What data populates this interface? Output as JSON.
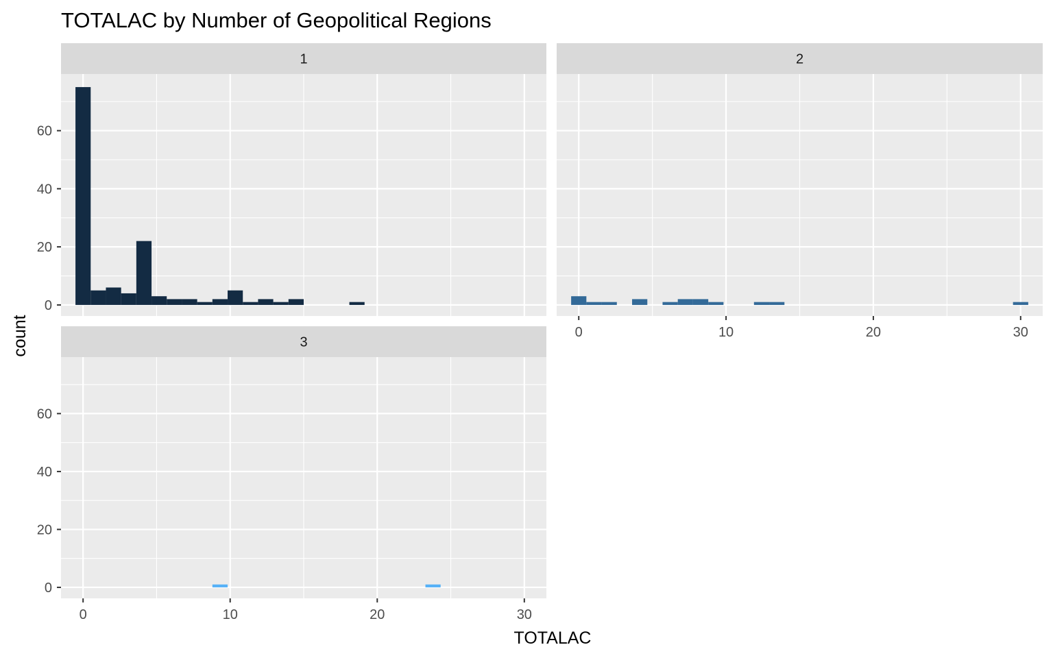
{
  "chart_data": {
    "type": "bar",
    "title": "TOTALAC by Number of Geopolitical Regions",
    "xlabel": "TOTALAC",
    "ylabel": "count",
    "xlim": [
      -1.5,
      31.5
    ],
    "ylim": [
      -3.8,
      79.5
    ],
    "x_ticks": [
      0,
      10,
      20,
      30
    ],
    "y_ticks": [
      0,
      20,
      40,
      60
    ],
    "grid": true,
    "bin_width": 1.0345,
    "panels": [
      {
        "name": "1",
        "color": "#132b43",
        "bins": [
          {
            "x": 0.0,
            "count": 75
          },
          {
            "x": 1.034,
            "count": 5
          },
          {
            "x": 2.069,
            "count": 6
          },
          {
            "x": 3.103,
            "count": 4
          },
          {
            "x": 4.138,
            "count": 22
          },
          {
            "x": 5.172,
            "count": 3
          },
          {
            "x": 6.207,
            "count": 2
          },
          {
            "x": 7.241,
            "count": 2
          },
          {
            "x": 8.276,
            "count": 1
          },
          {
            "x": 9.31,
            "count": 2
          },
          {
            "x": 10.345,
            "count": 5
          },
          {
            "x": 11.379,
            "count": 1
          },
          {
            "x": 12.414,
            "count": 2
          },
          {
            "x": 13.448,
            "count": 1
          },
          {
            "x": 14.483,
            "count": 2
          },
          {
            "x": 18.621,
            "count": 1
          }
        ]
      },
      {
        "name": "2",
        "color": "#336a98",
        "bins": [
          {
            "x": 0.0,
            "count": 3
          },
          {
            "x": 1.034,
            "count": 1
          },
          {
            "x": 2.069,
            "count": 1
          },
          {
            "x": 4.138,
            "count": 2
          },
          {
            "x": 6.207,
            "count": 1
          },
          {
            "x": 7.241,
            "count": 2
          },
          {
            "x": 8.276,
            "count": 2
          },
          {
            "x": 9.31,
            "count": 1
          },
          {
            "x": 12.414,
            "count": 1
          },
          {
            "x": 13.448,
            "count": 1
          },
          {
            "x": 30.0,
            "count": 1
          }
        ]
      },
      {
        "name": "3",
        "color": "#56b1f7",
        "bins": [
          {
            "x": 9.31,
            "count": 1
          },
          {
            "x": 23.793,
            "count": 1
          }
        ]
      }
    ]
  }
}
